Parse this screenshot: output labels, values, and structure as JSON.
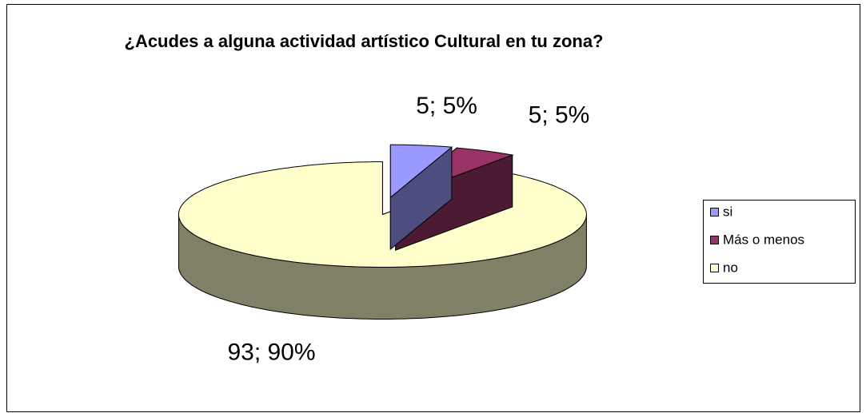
{
  "chart_data": {
    "type": "pie3d",
    "title": "¿Acudes a alguna actividad artístico Cultural en tu zona?",
    "categories": [
      "si",
      "Más o menos",
      "no"
    ],
    "values": [
      5,
      5,
      93
    ],
    "value_labels": [
      "5; 5%",
      "5; 5%",
      "93; 90%"
    ],
    "colors": [
      "#9999ff",
      "#993366",
      "#ffffcc"
    ],
    "side_colors": [
      "#4d4d80",
      "#4d1a33",
      "#808066"
    ],
    "legend": "right"
  }
}
